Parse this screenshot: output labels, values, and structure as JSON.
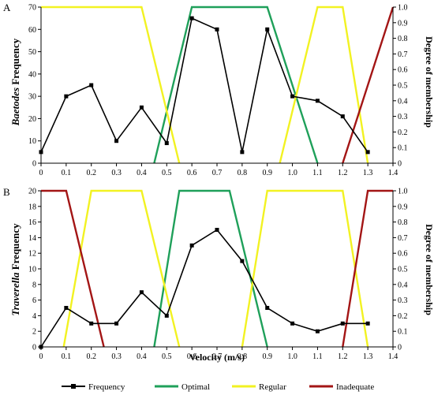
{
  "colors": {
    "frequency": "#000000",
    "optimal": "#1fa05a",
    "regular": "#f2f222",
    "inadequate": "#a31515",
    "axis": "#000000"
  },
  "legend": {
    "frequency": "Frequency",
    "optimal": "Optimal",
    "regular": "Regular",
    "inadequate": "Inadequate"
  },
  "chart_data": [
    {
      "type": "line",
      "panel_label": "A",
      "ylabel_italic": "Baetodes",
      "ylabel_rest": " Frequency",
      "y2label": "Degree of membership",
      "xlabel": "",
      "xlim": [
        0,
        1.4
      ],
      "ylim": [
        0,
        70
      ],
      "y2lim": [
        0,
        1.0
      ],
      "x_ticks": [
        "0",
        "0.1",
        "0.2",
        "0.3",
        "0.4",
        "0.5",
        "0.6",
        "0.7",
        "0.8",
        "0.9",
        "1.0",
        "1.1",
        "1.2",
        "1.3",
        "1.4"
      ],
      "y_ticks": [
        "0",
        "10",
        "20",
        "30",
        "40",
        "50",
        "60",
        "70"
      ],
      "y2_ticks": [
        "0",
        "0.1",
        "0.2",
        "0.3",
        "0.4",
        "0.5",
        "0.6",
        "0.7",
        "0.8",
        "0.9",
        "1.0"
      ],
      "series": [
        {
          "name": "Frequency",
          "axis": "left",
          "marker": "square",
          "x": [
            0,
            0.1,
            0.2,
            0.3,
            0.4,
            0.5,
            0.6,
            0.7,
            0.8,
            0.9,
            1.0,
            1.1,
            1.2,
            1.3
          ],
          "y": [
            5,
            30,
            35,
            10,
            25,
            9,
            65,
            60,
            5,
            60,
            30,
            28,
            21,
            5
          ]
        },
        {
          "name": "Optimal",
          "axis": "right",
          "x": [
            0.45,
            0.6,
            0.9,
            1.1
          ],
          "y": [
            0,
            1,
            1,
            0
          ]
        },
        {
          "name": "Regular",
          "axis": "right",
          "segments": [
            {
              "x": [
                0,
                0.4,
                0.55
              ],
              "y": [
                1,
                1,
                0
              ]
            },
            {
              "x": [
                0.95,
                1.1,
                1.2,
                1.3
              ],
              "y": [
                0,
                1,
                1,
                0
              ]
            }
          ]
        },
        {
          "name": "Inadequate",
          "axis": "right",
          "x": [
            1.2,
            1.4
          ],
          "y": [
            0,
            1
          ]
        }
      ]
    },
    {
      "type": "line",
      "panel_label": "B",
      "ylabel_italic": "Traverella",
      "ylabel_rest": " Frequency",
      "y2label": "Degree of membership",
      "xlabel": "Velocity (m/s)",
      "xlim": [
        0,
        1.4
      ],
      "ylim": [
        0,
        20
      ],
      "y2lim": [
        0,
        1.0
      ],
      "x_ticks": [
        "0",
        "0.1",
        "0.2",
        "0.3",
        "0.4",
        "0.5",
        "0.6",
        "0.7",
        "0.8",
        "0.9",
        "1.0",
        "1.1",
        "1.2",
        "1.3",
        "1.4"
      ],
      "y_ticks": [
        "0",
        "2",
        "4",
        "6",
        "8",
        "10",
        "12",
        "14",
        "16",
        "18",
        "20"
      ],
      "y2_ticks": [
        "0",
        "0.1",
        "0.2",
        "0.3",
        "0.4",
        "0.5",
        "0.6",
        "0.7",
        "0.8",
        "0.9",
        "1.0"
      ],
      "series": [
        {
          "name": "Frequency",
          "axis": "left",
          "marker": "square",
          "x": [
            0,
            0.1,
            0.2,
            0.3,
            0.4,
            0.5,
            0.6,
            0.7,
            0.8,
            0.9,
            1.0,
            1.1,
            1.2,
            1.3
          ],
          "y": [
            0,
            5,
            3,
            3,
            7,
            4,
            13,
            15,
            11,
            5,
            3,
            2,
            3,
            3
          ]
        },
        {
          "name": "Optimal",
          "axis": "right",
          "x": [
            0.45,
            0.55,
            0.75,
            0.9
          ],
          "y": [
            0,
            1,
            1,
            0
          ]
        },
        {
          "name": "Regular",
          "axis": "right",
          "segments": [
            {
              "x": [
                0.09,
                0.2,
                0.4,
                0.55
              ],
              "y": [
                0,
                1,
                1,
                0
              ]
            },
            {
              "x": [
                0.8,
                0.9,
                1.2,
                1.3
              ],
              "y": [
                0,
                1,
                1,
                0
              ]
            }
          ]
        },
        {
          "name": "Inadequate",
          "axis": "right",
          "segments": [
            {
              "x": [
                0,
                0.1,
                0.25
              ],
              "y": [
                1,
                1,
                0
              ]
            },
            {
              "x": [
                1.2,
                1.3,
                1.4
              ],
              "y": [
                0,
                1,
                1
              ]
            }
          ]
        }
      ]
    }
  ]
}
